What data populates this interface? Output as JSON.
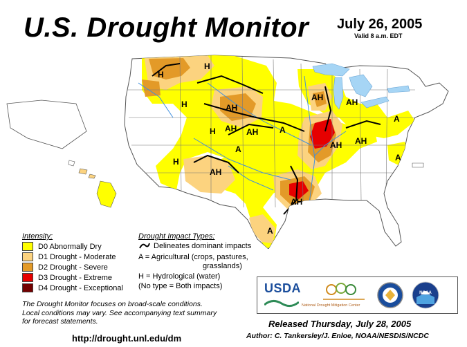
{
  "header": {
    "title": "U.S. Drought Monitor",
    "date": "July 26, 2005",
    "valid": "Valid 8 a.m. EDT"
  },
  "colors": {
    "D0": "#ffff00",
    "D1": "#fcd37f",
    "D2": "#e39a28",
    "D3": "#e60000",
    "D4": "#730000",
    "water": "#a6d5f5",
    "land": "#ffffff",
    "river": "#3f8fde"
  },
  "legend": {
    "intensity_title": "Intensity:",
    "intensity": [
      {
        "code": "D0",
        "label": "D0 Abnormally Dry"
      },
      {
        "code": "D1",
        "label": "D1 Drought - Moderate"
      },
      {
        "code": "D2",
        "label": "D2 Drought - Severe"
      },
      {
        "code": "D3",
        "label": "D3 Drought - Extreme"
      },
      {
        "code": "D4",
        "label": "D4 Drought - Exceptional"
      }
    ],
    "impact_title": "Drought Impact Types:",
    "impact_line": "Delineates dominant impacts",
    "impact_a": "A = Agricultural (crops, pastures,",
    "impact_a2": "grasslands)",
    "impact_h": "H = Hydrological (water)",
    "impact_both": "(No type = Both impacts)"
  },
  "map_labels": [
    {
      "id": "mt-h",
      "text": "H"
    },
    {
      "id": "nd-h",
      "text": "H"
    },
    {
      "id": "sd-ah",
      "text": "AH"
    },
    {
      "id": "mn-h",
      "text": "H"
    },
    {
      "id": "wy-h",
      "text": "H"
    },
    {
      "id": "ne-ah1",
      "text": "AH"
    },
    {
      "id": "ne-ah2",
      "text": "AH"
    },
    {
      "id": "ks-a",
      "text": "A"
    },
    {
      "id": "ks-a2",
      "text": "A"
    },
    {
      "id": "co-h",
      "text": "H"
    },
    {
      "id": "nm-ah",
      "text": "AH"
    },
    {
      "id": "wi-ah",
      "text": "AH"
    },
    {
      "id": "mi-ah",
      "text": "AH"
    },
    {
      "id": "in-ah",
      "text": "AH"
    },
    {
      "id": "oh-ah",
      "text": "AH"
    },
    {
      "id": "ny-a",
      "text": "A"
    },
    {
      "id": "va-a",
      "text": "A"
    },
    {
      "id": "ar-ah",
      "text": "AH"
    },
    {
      "id": "tx-a",
      "text": "A"
    }
  ],
  "notes": {
    "line1": "The Drought Monitor focuses on broad-scale conditions.",
    "line2": "Local conditions may vary.  See accompanying text summary",
    "line3": "for forecast statements."
  },
  "url": "http://drought.unl.edu/dm",
  "released": "Released Thursday, July 28, 2005",
  "author": "Author:  C. Tankersley/J. Enloe, NOAA/NESDIS/NCDC",
  "logos": {
    "usda": "USDA",
    "ndmc": "National Drought Mitigation Center",
    "noaa": "NOAA"
  }
}
